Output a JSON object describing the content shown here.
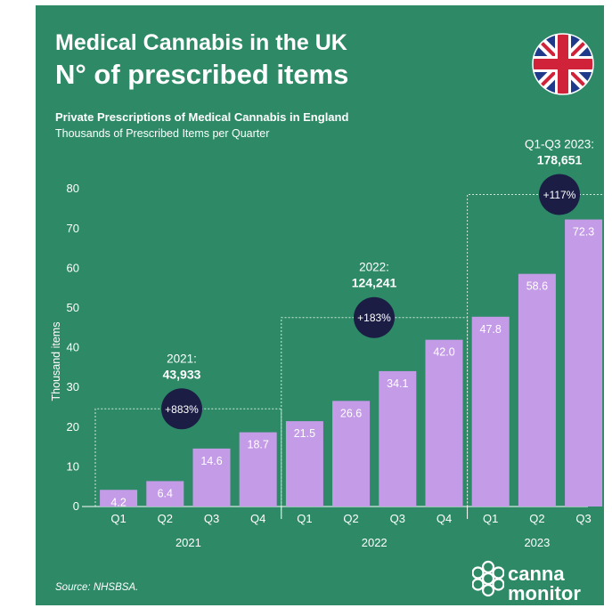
{
  "header": {
    "title_line1": "Medical Cannabis in the UK",
    "title_line2": "N° of prescribed items",
    "subtitle": "Private Prescriptions of Medical Cannabis in England",
    "unit_note": "Thousands of Prescribed Items per Quarter"
  },
  "flag_icon": "uk-flag-icon",
  "footer": {
    "source": "Source: NHSBSA.",
    "logo_line1": "canna",
    "logo_line2": "monitor"
  },
  "colors": {
    "background": "#2e8a66",
    "bar": "#c49be6",
    "badge": "#1b1d45",
    "text": "#ffffff"
  },
  "chart_data": {
    "type": "bar",
    "ylabel": "Thousand items",
    "ylim": [
      0,
      80
    ],
    "yticks": [
      0,
      10,
      20,
      30,
      40,
      50,
      60,
      70,
      80
    ],
    "groups": [
      {
        "year": "2021",
        "quarters": [
          "Q1",
          "Q2",
          "Q3",
          "Q4"
        ],
        "values": [
          4.2,
          6.4,
          14.6,
          18.7
        ],
        "value_labels": [
          "4.2",
          "6.4",
          "14.6",
          "18.7"
        ],
        "total_label": "2021:",
        "total_value": "43,933",
        "growth": "+883%"
      },
      {
        "year": "2022",
        "quarters": [
          "Q1",
          "Q2",
          "Q3",
          "Q4"
        ],
        "values": [
          21.5,
          26.6,
          34.1,
          42.0
        ],
        "value_labels": [
          "21.5",
          "26.6",
          "34.1",
          "42.0"
        ],
        "total_label": "2022:",
        "total_value": "124,241",
        "growth": "+183%"
      },
      {
        "year": "2023",
        "quarters": [
          "Q1",
          "Q2",
          "Q3"
        ],
        "values": [
          47.8,
          58.6,
          72.3
        ],
        "value_labels": [
          "47.8",
          "58.6",
          "72.3"
        ],
        "total_label": "Q1-Q3 2023:",
        "total_value": "178,651",
        "growth": "+117%"
      }
    ]
  }
}
